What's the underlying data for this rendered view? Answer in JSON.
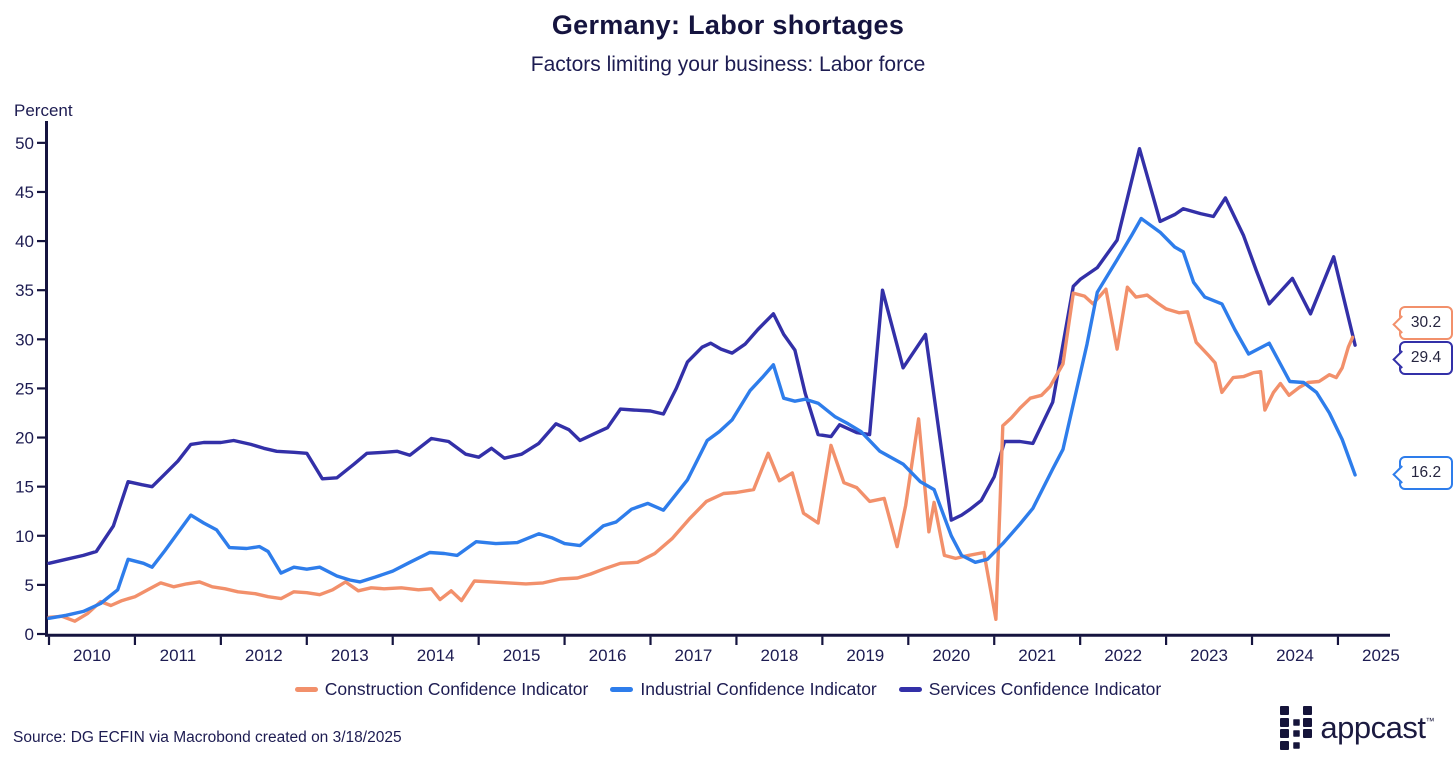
{
  "header": {
    "title": "Germany: Labor shortages",
    "subtitle": "Factors limiting your business: Labor force"
  },
  "chart_data": {
    "type": "line",
    "title": "Germany: Labor shortages",
    "subtitle": "Factors limiting your business: Labor force",
    "ylabel": "Percent",
    "xlabel": "",
    "grid": false,
    "legend_position": "bottom",
    "x_range": [
      2010,
      2025.6
    ],
    "ylim": [
      0,
      50
    ],
    "y_ticks": [
      0,
      5,
      10,
      15,
      20,
      25,
      30,
      35,
      40,
      45,
      50
    ],
    "x_ticks": [
      2010,
      2011,
      2012,
      2013,
      2014,
      2015,
      2016,
      2017,
      2018,
      2019,
      2020,
      2021,
      2022,
      2023,
      2024,
      2025
    ],
    "axis_color": "#15143f",
    "series": [
      {
        "name": "Construction Confidence Indicator",
        "color": "#F2906B",
        "end_label": "30.2",
        "points": [
          [
            2010.0,
            1.7
          ],
          [
            2010.15,
            1.8
          ],
          [
            2010.3,
            1.3
          ],
          [
            2010.45,
            2.1
          ],
          [
            2010.6,
            3.3
          ],
          [
            2010.72,
            2.9
          ],
          [
            2010.85,
            3.4
          ],
          [
            2011.0,
            3.8
          ],
          [
            2011.15,
            4.5
          ],
          [
            2011.3,
            5.2
          ],
          [
            2011.45,
            4.8
          ],
          [
            2011.6,
            5.1
          ],
          [
            2011.75,
            5.3
          ],
          [
            2011.9,
            4.8
          ],
          [
            2012.05,
            4.6
          ],
          [
            2012.2,
            4.3
          ],
          [
            2012.4,
            4.1
          ],
          [
            2012.55,
            3.8
          ],
          [
            2012.7,
            3.6
          ],
          [
            2012.85,
            4.3
          ],
          [
            2013.0,
            4.2
          ],
          [
            2013.15,
            4.0
          ],
          [
            2013.3,
            4.5
          ],
          [
            2013.45,
            5.3
          ],
          [
            2013.6,
            4.4
          ],
          [
            2013.75,
            4.7
          ],
          [
            2013.9,
            4.6
          ],
          [
            2014.1,
            4.7
          ],
          [
            2014.3,
            4.5
          ],
          [
            2014.45,
            4.6
          ],
          [
            2014.55,
            3.5
          ],
          [
            2014.68,
            4.4
          ],
          [
            2014.8,
            3.4
          ],
          [
            2014.95,
            5.4
          ],
          [
            2015.15,
            5.3
          ],
          [
            2015.35,
            5.2
          ],
          [
            2015.55,
            5.1
          ],
          [
            2015.75,
            5.2
          ],
          [
            2015.95,
            5.6
          ],
          [
            2016.15,
            5.7
          ],
          [
            2016.3,
            6.1
          ],
          [
            2016.45,
            6.6
          ],
          [
            2016.65,
            7.2
          ],
          [
            2016.85,
            7.3
          ],
          [
            2017.05,
            8.2
          ],
          [
            2017.25,
            9.7
          ],
          [
            2017.45,
            11.7
          ],
          [
            2017.65,
            13.5
          ],
          [
            2017.85,
            14.3
          ],
          [
            2018.0,
            14.4
          ],
          [
            2018.2,
            14.7
          ],
          [
            2018.37,
            18.4
          ],
          [
            2018.5,
            15.6
          ],
          [
            2018.65,
            16.4
          ],
          [
            2018.78,
            12.3
          ],
          [
            2018.95,
            11.3
          ],
          [
            2019.1,
            19.2
          ],
          [
            2019.25,
            15.4
          ],
          [
            2019.4,
            14.9
          ],
          [
            2019.55,
            13.5
          ],
          [
            2019.72,
            13.8
          ],
          [
            2019.87,
            8.9
          ],
          [
            2019.97,
            13.1
          ],
          [
            2020.12,
            21.9
          ],
          [
            2020.24,
            10.4
          ],
          [
            2020.3,
            13.4
          ],
          [
            2020.42,
            8.0
          ],
          [
            2020.55,
            7.7
          ],
          [
            2020.7,
            8.0
          ],
          [
            2020.88,
            8.3
          ],
          [
            2021.02,
            1.5
          ],
          [
            2021.1,
            21.2
          ],
          [
            2021.2,
            22.0
          ],
          [
            2021.3,
            23.0
          ],
          [
            2021.42,
            24.0
          ],
          [
            2021.55,
            24.3
          ],
          [
            2021.65,
            25.2
          ],
          [
            2021.8,
            27.5
          ],
          [
            2021.92,
            34.7
          ],
          [
            2022.05,
            34.4
          ],
          [
            2022.15,
            33.6
          ],
          [
            2022.3,
            35.1
          ],
          [
            2022.43,
            29.0
          ],
          [
            2022.55,
            35.3
          ],
          [
            2022.65,
            34.3
          ],
          [
            2022.78,
            34.5
          ],
          [
            2022.9,
            33.7
          ],
          [
            2023.0,
            33.1
          ],
          [
            2023.15,
            32.7
          ],
          [
            2023.25,
            32.8
          ],
          [
            2023.35,
            29.7
          ],
          [
            2023.5,
            28.3
          ],
          [
            2023.57,
            27.6
          ],
          [
            2023.65,
            24.6
          ],
          [
            2023.78,
            26.1
          ],
          [
            2023.9,
            26.2
          ],
          [
            2024.02,
            26.6
          ],
          [
            2024.1,
            26.7
          ],
          [
            2024.15,
            22.8
          ],
          [
            2024.25,
            24.6
          ],
          [
            2024.33,
            25.5
          ],
          [
            2024.43,
            24.3
          ],
          [
            2024.55,
            25.1
          ],
          [
            2024.65,
            25.6
          ],
          [
            2024.78,
            25.7
          ],
          [
            2024.9,
            26.4
          ],
          [
            2024.98,
            26.1
          ],
          [
            2025.05,
            27.1
          ],
          [
            2025.12,
            29.2
          ],
          [
            2025.17,
            30.2
          ]
        ]
      },
      {
        "name": "Industrial Confidence Indicator",
        "color": "#2E7DEB",
        "end_label": "16.2",
        "points": [
          [
            2010.0,
            1.6
          ],
          [
            2010.2,
            1.9
          ],
          [
            2010.4,
            2.3
          ],
          [
            2010.6,
            3.1
          ],
          [
            2010.8,
            4.5
          ],
          [
            2010.92,
            7.6
          ],
          [
            2011.1,
            7.2
          ],
          [
            2011.2,
            6.8
          ],
          [
            2011.35,
            8.5
          ],
          [
            2011.5,
            10.3
          ],
          [
            2011.65,
            12.1
          ],
          [
            2011.8,
            11.3
          ],
          [
            2011.95,
            10.6
          ],
          [
            2012.1,
            8.8
          ],
          [
            2012.3,
            8.7
          ],
          [
            2012.45,
            8.9
          ],
          [
            2012.55,
            8.4
          ],
          [
            2012.7,
            6.2
          ],
          [
            2012.85,
            6.8
          ],
          [
            2013.0,
            6.6
          ],
          [
            2013.15,
            6.8
          ],
          [
            2013.35,
            5.9
          ],
          [
            2013.5,
            5.5
          ],
          [
            2013.62,
            5.3
          ],
          [
            2013.8,
            5.8
          ],
          [
            2014.0,
            6.4
          ],
          [
            2014.2,
            7.3
          ],
          [
            2014.43,
            8.3
          ],
          [
            2014.6,
            8.2
          ],
          [
            2014.75,
            8.0
          ],
          [
            2014.97,
            9.4
          ],
          [
            2015.2,
            9.2
          ],
          [
            2015.45,
            9.3
          ],
          [
            2015.7,
            10.2
          ],
          [
            2015.85,
            9.8
          ],
          [
            2016.0,
            9.2
          ],
          [
            2016.18,
            9.0
          ],
          [
            2016.45,
            11.0
          ],
          [
            2016.6,
            11.4
          ],
          [
            2016.78,
            12.7
          ],
          [
            2016.97,
            13.3
          ],
          [
            2017.15,
            12.6
          ],
          [
            2017.43,
            15.7
          ],
          [
            2017.66,
            19.7
          ],
          [
            2017.8,
            20.6
          ],
          [
            2017.95,
            21.8
          ],
          [
            2018.16,
            24.8
          ],
          [
            2018.3,
            26.1
          ],
          [
            2018.43,
            27.4
          ],
          [
            2018.55,
            24.0
          ],
          [
            2018.68,
            23.7
          ],
          [
            2018.8,
            23.9
          ],
          [
            2018.95,
            23.5
          ],
          [
            2019.15,
            22.1
          ],
          [
            2019.3,
            21.4
          ],
          [
            2019.45,
            20.6
          ],
          [
            2019.67,
            18.6
          ],
          [
            2019.94,
            17.3
          ],
          [
            2020.14,
            15.5
          ],
          [
            2020.3,
            14.7
          ],
          [
            2020.5,
            10.0
          ],
          [
            2020.62,
            8.0
          ],
          [
            2020.78,
            7.3
          ],
          [
            2020.92,
            7.6
          ],
          [
            2021.1,
            9.2
          ],
          [
            2021.3,
            11.2
          ],
          [
            2021.45,
            12.8
          ],
          [
            2021.68,
            16.8
          ],
          [
            2021.8,
            18.8
          ],
          [
            2021.92,
            23.4
          ],
          [
            2022.08,
            29.5
          ],
          [
            2022.2,
            34.8
          ],
          [
            2022.43,
            38.1
          ],
          [
            2022.6,
            40.6
          ],
          [
            2022.71,
            42.3
          ],
          [
            2022.93,
            40.9
          ],
          [
            2023.1,
            39.4
          ],
          [
            2023.2,
            38.9
          ],
          [
            2023.32,
            35.8
          ],
          [
            2023.45,
            34.3
          ],
          [
            2023.65,
            33.6
          ],
          [
            2023.8,
            31.0
          ],
          [
            2023.96,
            28.5
          ],
          [
            2024.2,
            29.6
          ],
          [
            2024.44,
            25.7
          ],
          [
            2024.6,
            25.6
          ],
          [
            2024.75,
            24.6
          ],
          [
            2024.9,
            22.5
          ],
          [
            2025.05,
            19.8
          ],
          [
            2025.2,
            16.2
          ]
        ]
      },
      {
        "name": "Services Confidence Indicator",
        "color": "#3330A8",
        "end_label": "29.4",
        "points": [
          [
            2010.0,
            7.2
          ],
          [
            2010.2,
            7.6
          ],
          [
            2010.4,
            8.0
          ],
          [
            2010.55,
            8.4
          ],
          [
            2010.75,
            11.0
          ],
          [
            2010.92,
            15.5
          ],
          [
            2011.08,
            15.2
          ],
          [
            2011.2,
            15.0
          ],
          [
            2011.35,
            16.3
          ],
          [
            2011.5,
            17.6
          ],
          [
            2011.65,
            19.3
          ],
          [
            2011.8,
            19.5
          ],
          [
            2012.0,
            19.5
          ],
          [
            2012.15,
            19.7
          ],
          [
            2012.35,
            19.3
          ],
          [
            2012.5,
            18.9
          ],
          [
            2012.65,
            18.6
          ],
          [
            2012.85,
            18.5
          ],
          [
            2013.0,
            18.4
          ],
          [
            2013.18,
            15.8
          ],
          [
            2013.35,
            15.9
          ],
          [
            2013.55,
            17.3
          ],
          [
            2013.7,
            18.4
          ],
          [
            2013.9,
            18.5
          ],
          [
            2014.05,
            18.6
          ],
          [
            2014.2,
            18.2
          ],
          [
            2014.45,
            19.9
          ],
          [
            2014.65,
            19.6
          ],
          [
            2014.85,
            18.3
          ],
          [
            2015.0,
            18.0
          ],
          [
            2015.15,
            18.9
          ],
          [
            2015.3,
            17.9
          ],
          [
            2015.5,
            18.3
          ],
          [
            2015.7,
            19.4
          ],
          [
            2015.9,
            21.4
          ],
          [
            2016.05,
            20.8
          ],
          [
            2016.18,
            19.7
          ],
          [
            2016.35,
            20.4
          ],
          [
            2016.5,
            21.0
          ],
          [
            2016.65,
            22.9
          ],
          [
            2016.8,
            22.8
          ],
          [
            2017.0,
            22.7
          ],
          [
            2017.15,
            22.4
          ],
          [
            2017.3,
            25.0
          ],
          [
            2017.43,
            27.7
          ],
          [
            2017.6,
            29.2
          ],
          [
            2017.7,
            29.6
          ],
          [
            2017.82,
            29.0
          ],
          [
            2017.95,
            28.6
          ],
          [
            2018.1,
            29.5
          ],
          [
            2018.25,
            31.0
          ],
          [
            2018.43,
            32.6
          ],
          [
            2018.55,
            30.5
          ],
          [
            2018.68,
            28.9
          ],
          [
            2018.8,
            24.5
          ],
          [
            2018.95,
            20.3
          ],
          [
            2019.1,
            20.1
          ],
          [
            2019.2,
            21.3
          ],
          [
            2019.4,
            20.5
          ],
          [
            2019.55,
            20.3
          ],
          [
            2019.7,
            35.0
          ],
          [
            2019.94,
            27.1
          ],
          [
            2020.2,
            30.5
          ],
          [
            2020.5,
            11.6
          ],
          [
            2020.62,
            12.1
          ],
          [
            2020.72,
            12.7
          ],
          [
            2020.85,
            13.6
          ],
          [
            2021.0,
            16.0
          ],
          [
            2021.12,
            19.6
          ],
          [
            2021.3,
            19.6
          ],
          [
            2021.45,
            19.4
          ],
          [
            2021.68,
            23.6
          ],
          [
            2021.92,
            35.4
          ],
          [
            2022.0,
            36.1
          ],
          [
            2022.2,
            37.3
          ],
          [
            2022.43,
            40.1
          ],
          [
            2022.69,
            49.4
          ],
          [
            2022.93,
            42.0
          ],
          [
            2023.1,
            42.7
          ],
          [
            2023.2,
            43.3
          ],
          [
            2023.4,
            42.8
          ],
          [
            2023.55,
            42.5
          ],
          [
            2023.69,
            44.4
          ],
          [
            2023.9,
            40.6
          ],
          [
            2024.05,
            37.0
          ],
          [
            2024.2,
            33.6
          ],
          [
            2024.47,
            36.2
          ],
          [
            2024.68,
            32.6
          ],
          [
            2024.95,
            38.4
          ],
          [
            2025.2,
            29.4
          ]
        ]
      }
    ]
  },
  "footer": {
    "source": "Source: DG ECFIN via Macrobond created on 3/18/2025",
    "logo_text": "appcast",
    "logo_tm": "™"
  }
}
